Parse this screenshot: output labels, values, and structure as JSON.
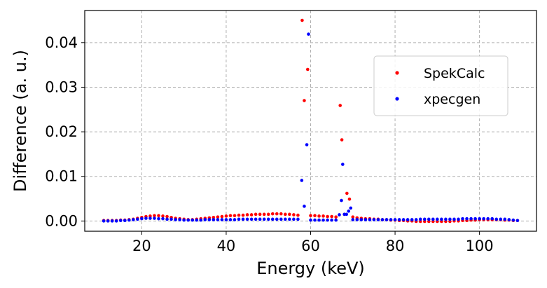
{
  "chart_data": {
    "type": "scatter",
    "xlabel": "Energy (keV)",
    "ylabel": "Difference (a. u.)",
    "xlim": [
      6.5,
      113.5
    ],
    "ylim": [
      -0.0023,
      0.0472
    ],
    "xticks": [
      20,
      40,
      60,
      80,
      100
    ],
    "yticks": [
      0.0,
      0.01,
      0.02,
      0.03,
      0.04
    ],
    "xtick_labels": [
      "20",
      "40",
      "60",
      "80",
      "100"
    ],
    "ytick_labels": [
      "0.00",
      "0.01",
      "0.02",
      "0.03",
      "0.04"
    ],
    "grid": true,
    "legend_position": "center-right",
    "series": [
      {
        "name": "SpekCalc",
        "color": "#ff0000",
        "x": [
          11,
          12,
          13,
          14,
          15,
          16,
          17,
          18,
          19,
          20,
          21,
          22,
          23,
          24,
          25,
          26,
          27,
          28,
          29,
          30,
          31,
          32,
          33,
          34,
          35,
          36,
          37,
          38,
          39,
          40,
          41,
          42,
          43,
          44,
          45,
          46,
          47,
          48,
          49,
          50,
          51,
          52,
          53,
          54,
          55,
          56,
          57,
          58,
          58.5,
          59.3,
          60,
          61,
          62,
          63,
          64,
          65,
          66,
          67,
          67.4,
          68,
          68.6,
          69.2,
          70,
          71,
          72,
          73,
          74,
          75,
          76,
          77,
          78,
          79,
          80,
          81,
          82,
          83,
          84,
          85,
          86,
          87,
          88,
          89,
          90,
          91,
          92,
          93,
          94,
          95,
          96,
          97,
          98,
          99,
          100,
          101,
          102,
          103,
          104,
          105,
          106,
          107,
          108,
          109
        ],
        "values": [
          0.0001,
          0.0001,
          0.0001,
          0.0001,
          0.0002,
          0.0002,
          0.0003,
          0.0004,
          0.0006,
          0.0008,
          0.001,
          0.0011,
          0.0012,
          0.0012,
          0.0011,
          0.001,
          0.0008,
          0.0006,
          0.0005,
          0.0004,
          0.0003,
          0.0003,
          0.0004,
          0.0005,
          0.0006,
          0.0007,
          0.0008,
          0.0009,
          0.001,
          0.0011,
          0.0012,
          0.0012,
          0.0013,
          0.0013,
          0.0014,
          0.0014,
          0.0015,
          0.0015,
          0.0015,
          0.0015,
          0.0016,
          0.0016,
          0.0016,
          0.0015,
          0.0015,
          0.0014,
          0.0013,
          0.045,
          0.027,
          0.034,
          0.0012,
          0.0012,
          0.0011,
          0.0011,
          0.001,
          0.001,
          0.0009,
          0.0259,
          0.0182,
          0.0015,
          0.0062,
          0.0049,
          0.0009,
          0.0007,
          0.0006,
          0.0005,
          0.0005,
          0.0004,
          0.0004,
          0.0003,
          0.0003,
          0.0002,
          0.0002,
          0.0001,
          0.0001,
          0.0,
          0.0,
          -0.0001,
          -0.0001,
          -0.0001,
          -0.0001,
          -0.0001,
          -0.0001,
          -0.0001,
          -0.0001,
          -0.0001,
          0.0,
          0.0,
          0.0001,
          0.0001,
          0.0002,
          0.0002,
          0.0003,
          0.0003,
          0.0003,
          0.0003,
          0.0003,
          0.0003,
          0.0002,
          0.0002,
          0.0001,
          0.0001
        ]
      },
      {
        "name": "xpecgen",
        "color": "#0000ff",
        "x": [
          11,
          12,
          13,
          14,
          15,
          16,
          17,
          18,
          19,
          20,
          21,
          22,
          23,
          24,
          25,
          26,
          27,
          28,
          29,
          30,
          31,
          32,
          33,
          34,
          35,
          36,
          37,
          38,
          39,
          40,
          41,
          42,
          43,
          44,
          45,
          46,
          47,
          48,
          49,
          50,
          51,
          52,
          53,
          54,
          55,
          56,
          57,
          57.9,
          58.5,
          59.1,
          59.5,
          60,
          61,
          62,
          63,
          64,
          65,
          66,
          66.8,
          67.3,
          67.6,
          68,
          68.5,
          69,
          69.5,
          70,
          71,
          72,
          73,
          74,
          75,
          76,
          77,
          78,
          79,
          80,
          81,
          82,
          83,
          84,
          85,
          86,
          87,
          88,
          89,
          90,
          91,
          92,
          93,
          94,
          95,
          96,
          97,
          98,
          99,
          100,
          101,
          102,
          103,
          104,
          105,
          106,
          107,
          108,
          109
        ],
        "values": [
          0.0,
          0.0,
          0.0,
          0.0,
          0.0001,
          0.0001,
          0.0002,
          0.0003,
          0.0004,
          0.0005,
          0.0006,
          0.0006,
          0.0006,
          0.0005,
          0.0005,
          0.0004,
          0.0004,
          0.0003,
          0.0003,
          0.0002,
          0.0002,
          0.0002,
          0.0002,
          0.0002,
          0.0003,
          0.0003,
          0.0003,
          0.0003,
          0.0003,
          0.0003,
          0.0003,
          0.0003,
          0.0004,
          0.0004,
          0.0004,
          0.0004,
          0.0004,
          0.0004,
          0.0004,
          0.0004,
          0.0004,
          0.0004,
          0.0004,
          0.0004,
          0.0004,
          0.0004,
          0.0004,
          0.0091,
          0.0033,
          0.0171,
          0.0419,
          0.0002,
          0.0002,
          0.0002,
          0.0002,
          0.0002,
          0.0002,
          0.0002,
          0.0014,
          0.0046,
          0.0127,
          0.0015,
          0.0015,
          0.0022,
          0.0029,
          0.0003,
          0.0003,
          0.0003,
          0.0003,
          0.0003,
          0.0003,
          0.0003,
          0.0003,
          0.0003,
          0.0003,
          0.0003,
          0.0003,
          0.0003,
          0.0003,
          0.0003,
          0.0003,
          0.0004,
          0.0004,
          0.0004,
          0.0004,
          0.0004,
          0.0004,
          0.0004,
          0.0004,
          0.0004,
          0.0004,
          0.0005,
          0.0005,
          0.0005,
          0.0005,
          0.0005,
          0.0005,
          0.0005,
          0.0005,
          0.0004,
          0.0004,
          0.0004,
          0.0003,
          0.0002,
          0.0001
        ]
      }
    ]
  }
}
